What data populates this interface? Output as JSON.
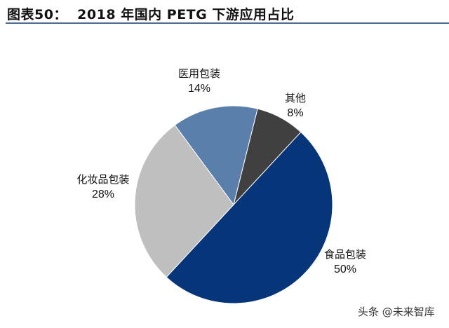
{
  "title": "图表50：  2018 年国内 PETG 下游应用占比",
  "watermark": "头条 @未来智库",
  "chart_data": {
    "type": "pie",
    "title": "2018 年国内 PETG 下游应用占比",
    "start_angle_deg": 14,
    "direction": "clockwise",
    "slices": [
      {
        "name": "其他",
        "value": 8,
        "label": "8%",
        "color": "#404040"
      },
      {
        "name": "食品包装",
        "value": 50,
        "label": "50%",
        "color": "#06357a"
      },
      {
        "name": "化妆品包装",
        "value": 28,
        "label": "28%",
        "color": "#bfbfbf"
      },
      {
        "name": "医用包装",
        "value": 14,
        "label": "14%",
        "color": "#5b7fab"
      }
    ]
  }
}
